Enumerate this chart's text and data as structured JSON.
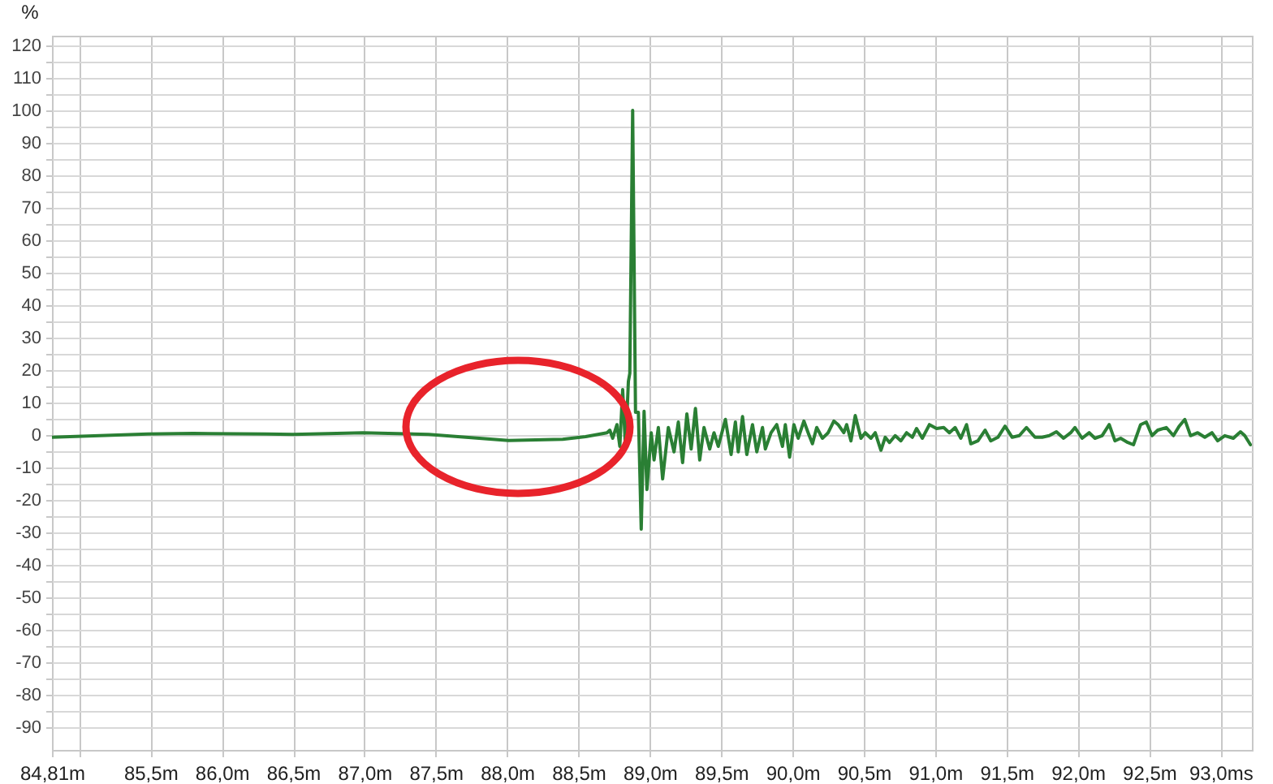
{
  "chart_data": {
    "type": "line",
    "ylabel": "%",
    "xlim": [
      84.81,
      93.22
    ],
    "ylim": [
      -97,
      123
    ],
    "xticks": [
      {
        "value": 84.81,
        "label": "84,81m"
      },
      {
        "value": 85,
        "label": null
      },
      {
        "value": 85.5,
        "label": "85,5m"
      },
      {
        "value": 86,
        "label": "86,0m"
      },
      {
        "value": 86.5,
        "label": "86,5m"
      },
      {
        "value": 87,
        "label": "87,0m"
      },
      {
        "value": 87.5,
        "label": "87,5m"
      },
      {
        "value": 88,
        "label": "88,0m"
      },
      {
        "value": 88.5,
        "label": "88,5m"
      },
      {
        "value": 89,
        "label": "89,0m"
      },
      {
        "value": 89.5,
        "label": "89,5m"
      },
      {
        "value": 90,
        "label": "90,0m"
      },
      {
        "value": 90.5,
        "label": "90,5m"
      },
      {
        "value": 91,
        "label": "91,0m"
      },
      {
        "value": 91.5,
        "label": "91,5m"
      },
      {
        "value": 92,
        "label": "92,0m"
      },
      {
        "value": 92.5,
        "label": "92,5m"
      },
      {
        "value": 93,
        "label": "93,0ms"
      }
    ],
    "yticks": [
      -90,
      {
        "value": -85,
        "label": null
      },
      -80,
      {
        "value": -75,
        "label": null
      },
      -70,
      {
        "value": -65,
        "label": null
      },
      -60,
      {
        "value": -55,
        "label": null
      },
      -50,
      {
        "value": -45,
        "label": null
      },
      -40,
      {
        "value": -35,
        "label": null
      },
      -30,
      {
        "value": -25,
        "label": null
      },
      -20,
      {
        "value": -15,
        "label": null
      },
      -10,
      {
        "value": -5,
        "label": null
      },
      0,
      {
        "value": 5,
        "label": null
      },
      10,
      {
        "value": 15,
        "label": null
      },
      20,
      {
        "value": 25,
        "label": null
      },
      30,
      {
        "value": 35,
        "label": null
      },
      40,
      {
        "value": 45,
        "label": null
      },
      50,
      {
        "value": 55,
        "label": null
      },
      60,
      {
        "value": 65,
        "label": null
      },
      70,
      {
        "value": 75,
        "label": null
      },
      80,
      {
        "value": 85,
        "label": null
      },
      90,
      {
        "value": 95,
        "label": null
      },
      100,
      {
        "value": 105,
        "label": null
      },
      110,
      {
        "value": 115,
        "label": null
      },
      120
    ],
    "grid": true,
    "marker": "none",
    "line_style": "solid",
    "series": [
      {
        "color": "#2a7f34",
        "x": [
          84.81,
          85.48,
          85.8,
          86.31,
          86.5,
          86.99,
          87.45,
          88.01,
          88.39,
          88.55,
          88.7,
          88.72,
          88.74,
          88.77,
          88.79,
          88.81,
          88.83,
          88.85,
          88.86,
          88.88,
          88.9,
          88.92,
          88.94,
          88.96,
          88.98,
          89.01,
          89.03,
          89.06,
          89.09,
          89.13,
          89.17,
          89.2,
          89.23,
          89.26,
          89.29,
          89.32,
          89.35,
          89.38,
          89.42,
          89.45,
          89.48,
          89.53,
          89.57,
          89.6,
          89.62,
          89.65,
          89.68,
          89.72,
          89.75,
          89.79,
          89.81,
          89.85,
          89.89,
          89.93,
          89.95,
          89.98,
          90.01,
          90.04,
          90.08,
          90.11,
          90.14,
          90.17,
          90.21,
          90.25,
          90.29,
          90.32,
          90.36,
          90.38,
          90.41,
          90.44,
          90.48,
          90.51,
          90.55,
          90.58,
          90.62,
          90.65,
          90.68,
          90.72,
          90.76,
          90.8,
          90.84,
          90.87,
          90.91,
          90.96,
          91.01,
          91.06,
          91.1,
          91.14,
          91.18,
          91.22,
          91.25,
          91.3,
          91.35,
          91.39,
          91.44,
          91.49,
          91.54,
          91.59,
          91.64,
          91.7,
          91.75,
          91.8,
          91.85,
          91.9,
          91.95,
          91.98,
          92.03,
          92.08,
          92.12,
          92.17,
          92.22,
          92.26,
          92.3,
          92.35,
          92.39,
          92.44,
          92.48,
          92.52,
          92.56,
          92.62,
          92.67,
          92.71,
          92.75,
          92.79,
          92.84,
          92.89,
          92.94,
          92.98,
          93.03,
          93.09,
          93.14,
          93.17,
          93.21
        ],
        "values": [
          -0.7,
          0.3,
          0.5,
          0.3,
          0.2,
          0.7,
          0.2,
          -1.7,
          -1.3,
          -0.5,
          0.7,
          1.5,
          -1,
          3.2,
          -3.5,
          14,
          -4.3,
          16.5,
          19,
          100,
          7,
          7,
          -29,
          7.3,
          -16.8,
          0.7,
          -7.7,
          2.3,
          -13.5,
          2.3,
          -5.2,
          4,
          -8.5,
          6.5,
          -4.3,
          8.2,
          -7.7,
          2.3,
          -4.3,
          0.7,
          -3.5,
          4.8,
          -6,
          4,
          -5.2,
          5.7,
          -6,
          3.2,
          -5.2,
          2.3,
          -4.3,
          0.7,
          3.2,
          -3.5,
          3.2,
          -6.8,
          3.2,
          -1,
          4.3,
          0.7,
          -2.7,
          2.3,
          -1,
          0.7,
          4.3,
          3.2,
          0.7,
          3.2,
          -1.8,
          6,
          -1,
          0.7,
          -1,
          0.7,
          -4.7,
          -0.7,
          -2.3,
          -0.2,
          -1.8,
          0.7,
          -0.7,
          2,
          -1,
          3.2,
          2,
          2.3,
          0.7,
          2.3,
          -1,
          3.2,
          -2.7,
          -1.8,
          1.5,
          -1.8,
          -0.7,
          2.7,
          -0.7,
          -0.2,
          2.3,
          -0.7,
          -0.7,
          -0.2,
          1,
          -1,
          0.7,
          2.3,
          -1,
          0.7,
          -1,
          -0.2,
          3.2,
          -1.8,
          -1,
          -2.3,
          -3,
          3.2,
          4,
          -0.2,
          1.5,
          2.3,
          -0.2,
          2.7,
          4.8,
          -0.2,
          0.7,
          -0.7,
          0.7,
          -1.8,
          -0.2,
          -1,
          1,
          -0.2,
          -3
        ]
      }
    ]
  }
}
